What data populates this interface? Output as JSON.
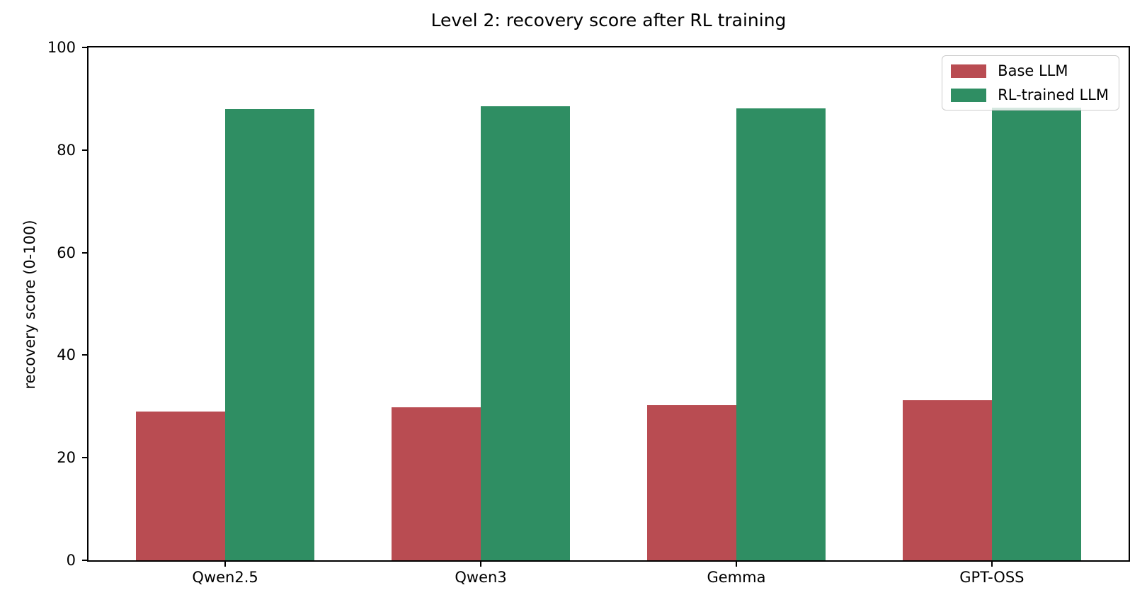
{
  "chart_data": {
    "type": "bar",
    "title": "Level 2: recovery score after RL training",
    "xlabel": "",
    "ylabel": "recovery score (0-100)",
    "categories": [
      "Qwen2.5",
      "Qwen3",
      "Gemma",
      "GPT-OSS"
    ],
    "series": [
      {
        "name": "Base LLM",
        "color": "#b94c52",
        "values": [
          29.0,
          29.8,
          30.3,
          31.2
        ]
      },
      {
        "name": "RL-trained LLM",
        "color": "#2f8e63",
        "values": [
          88.0,
          88.5,
          88.1,
          88.2
        ]
      }
    ],
    "ylim": [
      0,
      100
    ],
    "yticks": [
      0,
      20,
      40,
      60,
      80,
      100
    ],
    "grid": false,
    "legend_position": "upper right",
    "bar_width_fraction": 0.35,
    "axis_color": "#000000",
    "background_color": "#ffffff"
  }
}
